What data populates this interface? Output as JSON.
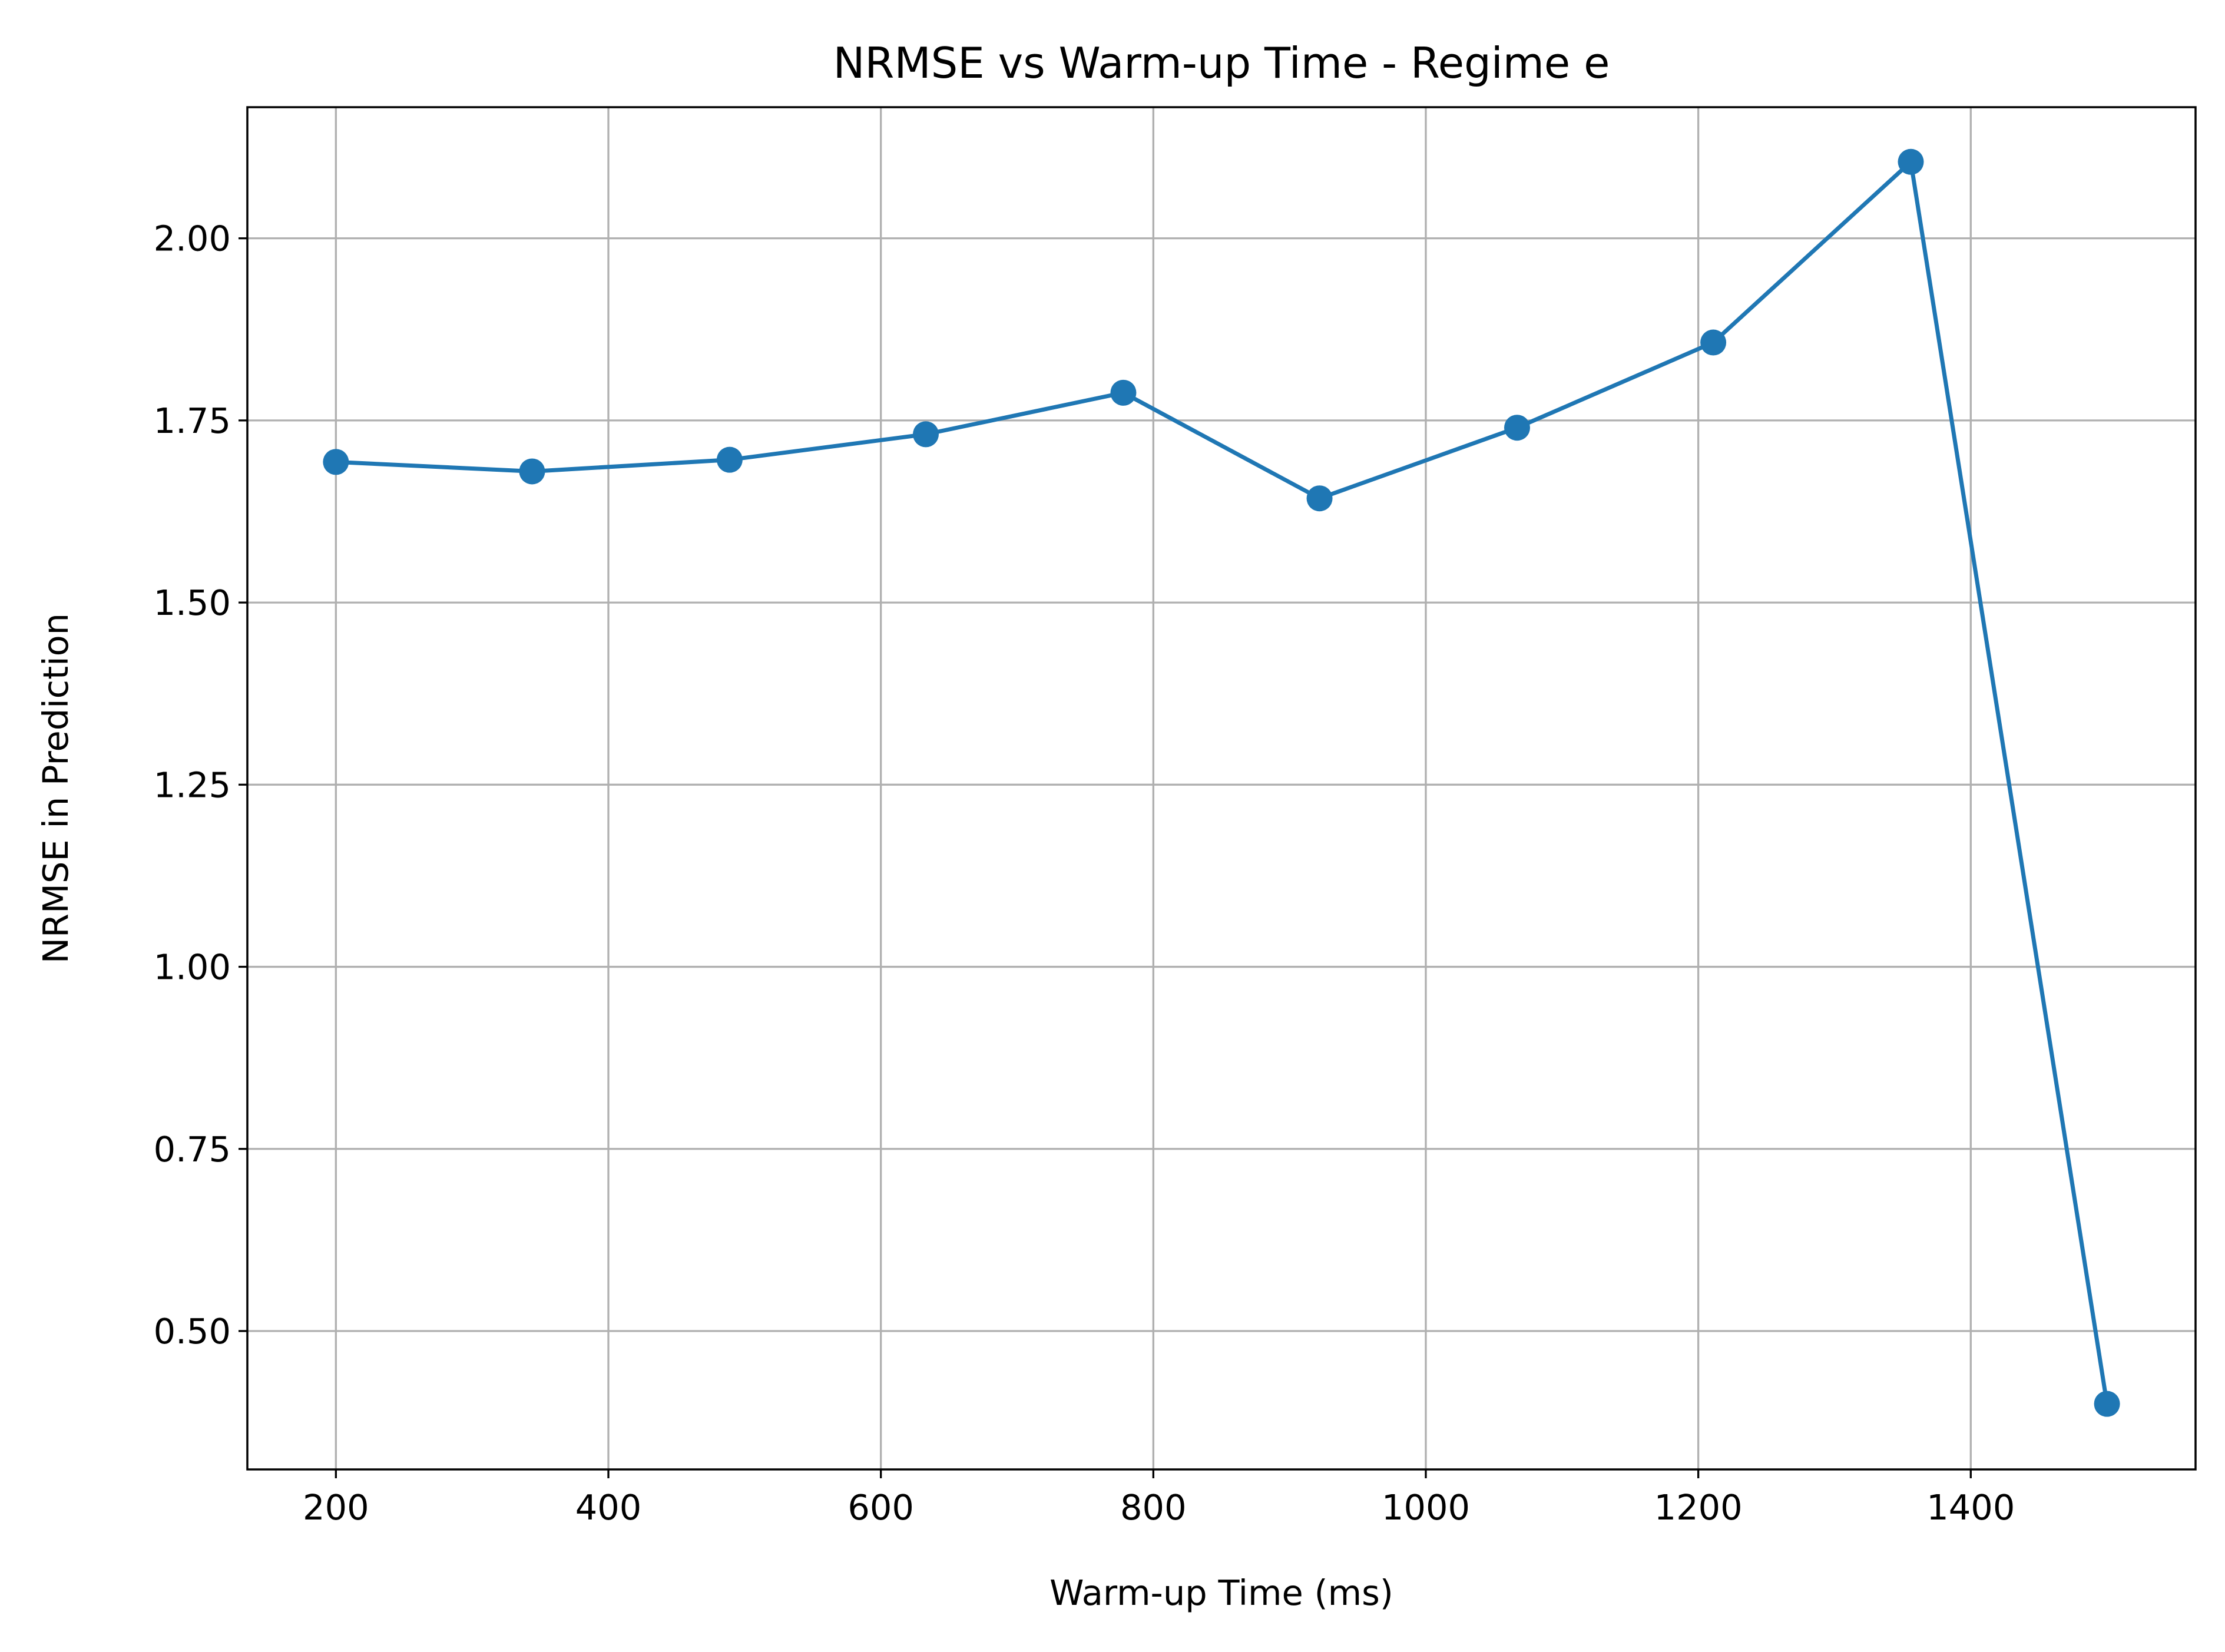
{
  "chart_data": {
    "type": "line",
    "title": "NRMSE vs Warm-up Time - Regime e",
    "xlabel": "Warm-up Time (ms)",
    "ylabel": "NRMSE in Prediction",
    "xlim": [
      135,
      1565
    ],
    "ylim": [
      0.31,
      2.18
    ],
    "x_ticks": [
      200,
      400,
      600,
      800,
      1000,
      1200,
      1400
    ],
    "x_tick_labels": [
      "200",
      "400",
      "600",
      "800",
      "1000",
      "1200",
      "1400"
    ],
    "y_ticks": [
      0.5,
      0.75,
      1.0,
      1.25,
      1.5,
      1.75,
      2.0
    ],
    "y_tick_labels": [
      "0.50",
      "0.75",
      "1.00",
      "1.25",
      "1.50",
      "1.75",
      "2.00"
    ],
    "grid": true,
    "marker": "circle",
    "series": [
      {
        "x": [
          200,
          344,
          489,
          633,
          778,
          922,
          1067,
          1211,
          1356,
          1500
        ],
        "y": [
          1.693,
          1.68,
          1.696,
          1.731,
          1.788,
          1.643,
          1.74,
          1.857,
          2.105,
          0.4
        ],
        "color": "#1f77b4"
      }
    ]
  }
}
